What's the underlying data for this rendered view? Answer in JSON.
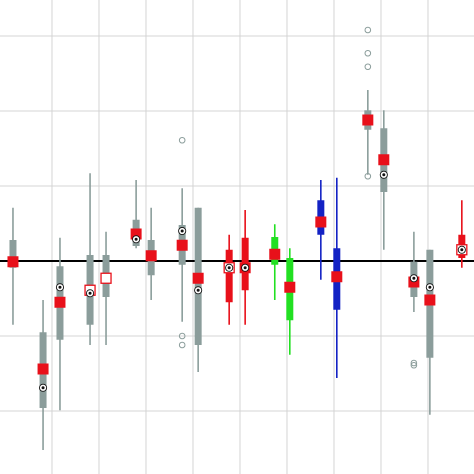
{
  "chart_data": {
    "type": "box",
    "xlim": [
      -0.106,
      9.979
    ],
    "ylim": [
      -2.84,
      3.48
    ],
    "xticks": [
      1,
      2,
      3,
      4,
      5,
      6,
      7,
      8,
      9
    ],
    "yticks": [
      -2,
      -1,
      0,
      1,
      2,
      3
    ],
    "grid": true,
    "hline": 0,
    "mean_color": "#e8101a",
    "boxes": [
      {
        "x": 0.17,
        "whisker_low": -0.85,
        "q1": -0.09,
        "q3": 0.28,
        "whisker_high": 0.71,
        "median": null,
        "mean": -0.01,
        "mean_open": false,
        "color": "#8b9d9b",
        "outliers": []
      },
      {
        "x": 0.81,
        "whisker_low": -2.52,
        "q1": -1.96,
        "q3": -0.95,
        "whisker_high": -0.52,
        "median": -1.69,
        "mean": -1.44,
        "mean_open": false,
        "color": "#8b9d9b",
        "outliers": []
      },
      {
        "x": 1.17,
        "whisker_low": -1.99,
        "q1": -1.05,
        "q3": -0.07,
        "whisker_high": 0.31,
        "median": -0.35,
        "mean": -0.55,
        "mean_open": false,
        "color": "#8b9d9b",
        "outliers": []
      },
      {
        "x": 1.81,
        "whisker_low": -1.12,
        "q1": -0.85,
        "q3": 0.08,
        "whisker_high": 1.17,
        "median": -0.43,
        "mean": -0.39,
        "mean_open": true,
        "color": "#8b9d9b",
        "outliers": []
      },
      {
        "x": 2.15,
        "whisker_low": -1.12,
        "q1": -0.48,
        "q3": 0.08,
        "whisker_high": 0.39,
        "median": null,
        "mean": -0.23,
        "mean_open": true,
        "color": "#8b9d9b",
        "outliers": []
      },
      {
        "x": 2.79,
        "whisker_low": 0.17,
        "q1": 0.2,
        "q3": 0.55,
        "whisker_high": 1.08,
        "median": 0.29,
        "mean": 0.36,
        "mean_open": false,
        "color": "#8b9d9b",
        "outliers": []
      },
      {
        "x": 3.11,
        "whisker_low": -0.52,
        "q1": -0.19,
        "q3": 0.28,
        "whisker_high": 0.71,
        "median": null,
        "mean": 0.07,
        "mean_open": false,
        "color": "#8b9d9b",
        "outliers": []
      },
      {
        "x": 3.77,
        "whisker_low": -0.81,
        "q1": -0.05,
        "q3": 0.48,
        "whisker_high": 0.97,
        "median": 0.4,
        "mean": 0.21,
        "mean_open": false,
        "color": "#8b9d9b",
        "outliers": [
          1.61,
          -1,
          -1.12
        ]
      },
      {
        "x": 4.11,
        "whisker_low": -1.48,
        "q1": -1.12,
        "q3": 0.71,
        "whisker_high": 0.71,
        "median": -0.39,
        "mean": -0.23,
        "mean_open": false,
        "color": "#8b9d9b",
        "outliers": []
      },
      {
        "x": 4.77,
        "whisker_low": -0.85,
        "q1": -0.55,
        "q3": 0.15,
        "whisker_high": 0.35,
        "median": -0.09,
        "mean": -0.09,
        "mean_open": true,
        "color": "#e8101a",
        "outliers": []
      },
      {
        "x": 5.11,
        "whisker_low": -0.85,
        "q1": -0.39,
        "q3": 0.31,
        "whisker_high": 0.68,
        "median": -0.09,
        "mean": -0.09,
        "mean_open": false,
        "color": "#e8101a",
        "outliers": []
      },
      {
        "x": 5.74,
        "whisker_low": -0.52,
        "q1": -0.05,
        "q3": 0.32,
        "whisker_high": 0.49,
        "median": null,
        "mean": 0.09,
        "mean_open": false,
        "color": "#22e022",
        "outliers": []
      },
      {
        "x": 6.06,
        "whisker_low": -1.25,
        "q1": -0.79,
        "q3": 0.04,
        "whisker_high": 0.17,
        "median": null,
        "mean": -0.35,
        "mean_open": false,
        "color": "#22e022",
        "outliers": []
      },
      {
        "x": 6.72,
        "whisker_low": -0.25,
        "q1": 0.35,
        "q3": 0.81,
        "whisker_high": 1.08,
        "median": null,
        "mean": 0.52,
        "mean_open": false,
        "color": "#1322c4",
        "outliers": []
      },
      {
        "x": 7.06,
        "whisker_low": -1.56,
        "q1": -0.65,
        "q3": 0.17,
        "whisker_high": 1.11,
        "median": null,
        "mean": -0.21,
        "mean_open": false,
        "color": "#1322c4",
        "outliers": []
      },
      {
        "x": 7.72,
        "whisker_low": 1.15,
        "q1": 1.75,
        "q3": 2.01,
        "whisker_high": 2.28,
        "median": null,
        "mean": 1.88,
        "mean_open": false,
        "color": "#8b9d9b",
        "outliers": [
          3.08,
          2.77,
          2.59,
          1.13
        ]
      },
      {
        "x": 8.06,
        "whisker_low": 0.15,
        "q1": 0.92,
        "q3": 1.77,
        "whisker_high": 2.01,
        "median": 1.15,
        "mean": 1.35,
        "mean_open": false,
        "color": "#8b9d9b",
        "outliers": []
      },
      {
        "x": 8.7,
        "whisker_low": -0.68,
        "q1": -0.48,
        "q3": -0.01,
        "whisker_high": 0.39,
        "median": -0.23,
        "mean": -0.28,
        "mean_open": false,
        "color": "#8b9d9b",
        "outliers": [
          -1.36,
          -1.39
        ]
      },
      {
        "x": 9.04,
        "whisker_low": -2.05,
        "q1": -1.29,
        "q3": 0.15,
        "whisker_high": 0.15,
        "median": -0.35,
        "mean": -0.52,
        "mean_open": false,
        "color": "#8b9d9b",
        "outliers": []
      },
      {
        "x": 9.72,
        "whisker_low": -0.09,
        "q1": 0.04,
        "q3": 0.35,
        "whisker_high": 0.81,
        "median": 0.15,
        "mean": 0.15,
        "mean_open": true,
        "color": "#e8101a",
        "outliers": []
      }
    ]
  }
}
